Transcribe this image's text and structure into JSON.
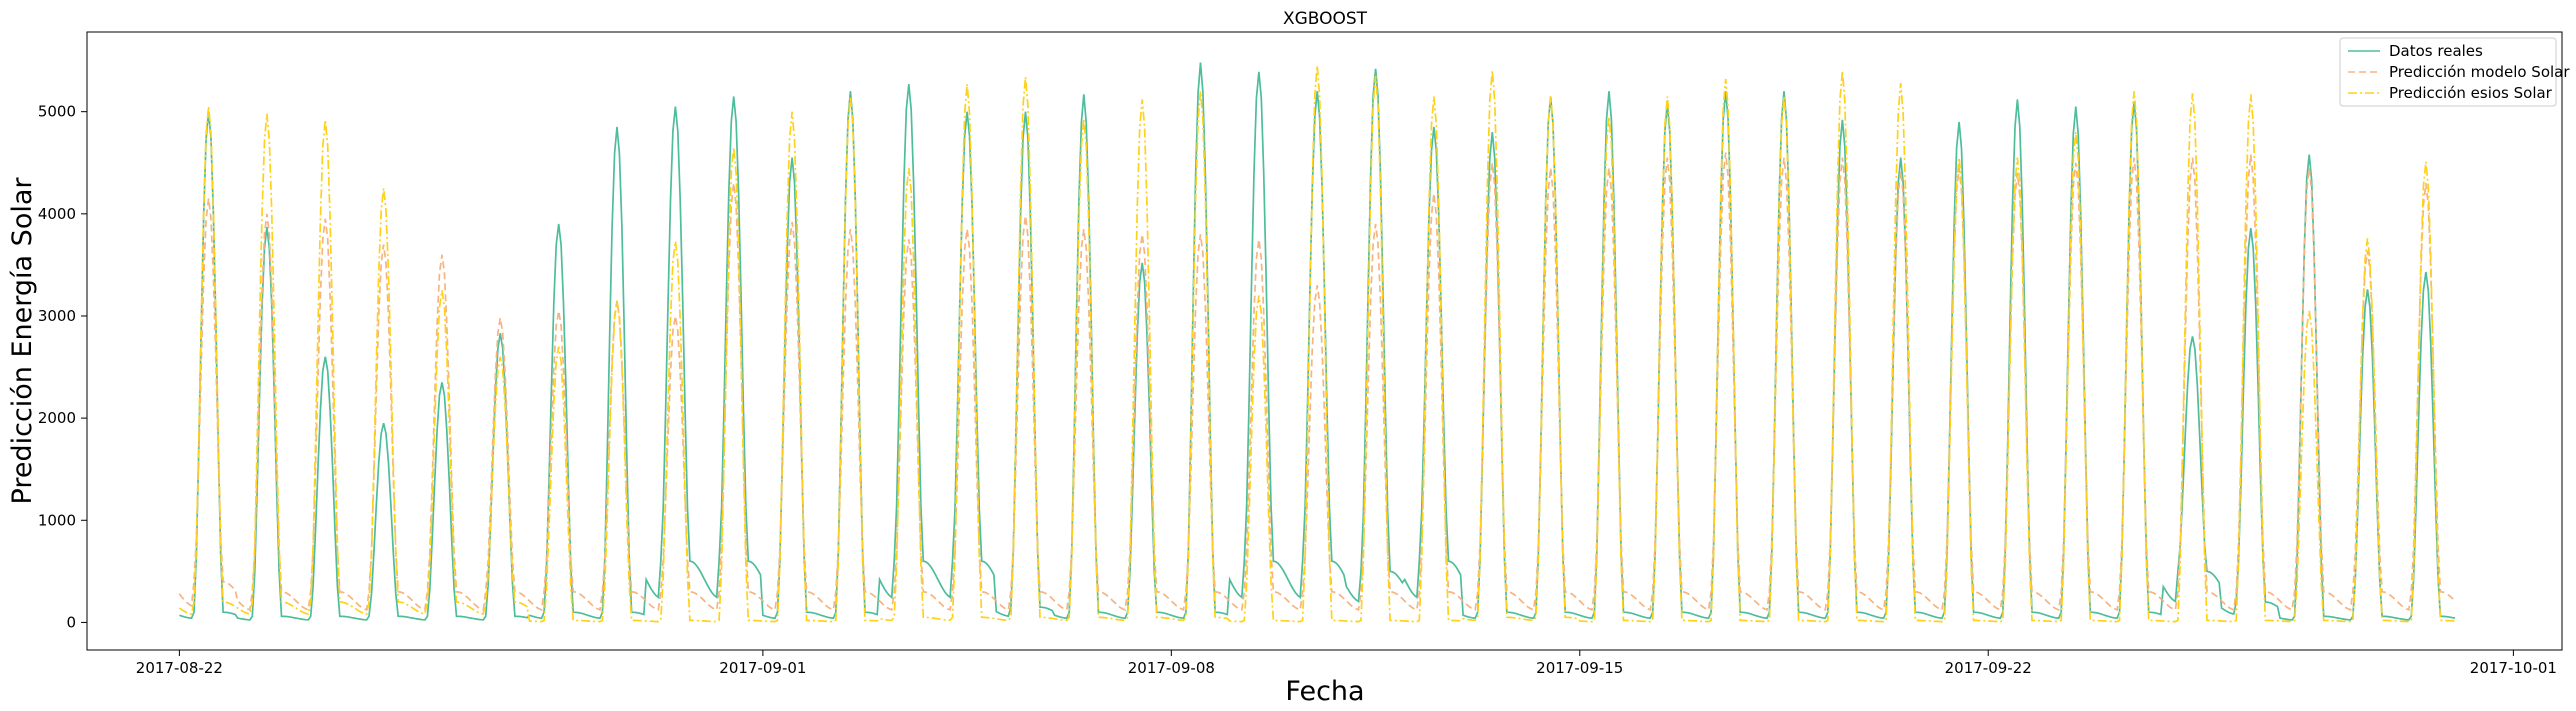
{
  "chart_data": {
    "type": "line",
    "title": "XGBOOST",
    "xlabel": "Fecha",
    "ylabel": "Predicción Energía Solar",
    "x_start": "2017-08-22",
    "x_end": "2017-09-29",
    "xlim": [
      "2017-08-20T10:00",
      "2017-10-01T20:00"
    ],
    "ylim": [
      -270,
      5780
    ],
    "x_ticks": [
      "2017-08-22",
      "2017-09-01",
      "2017-09-08",
      "2017-09-15",
      "2017-09-22",
      "2017-10-01"
    ],
    "y_ticks": [
      0,
      1000,
      2000,
      3000,
      4000,
      5000
    ],
    "grid": false,
    "legend_position": "top-right",
    "series": [
      {
        "name": "Datos reales",
        "color": "#4dbd9b",
        "line_style": "solid",
        "daily_peaks": [
          5000,
          3870,
          2600,
          1950,
          2350,
          2830,
          3900,
          4850,
          5050,
          5150,
          4550,
          5200,
          5270,
          5000,
          5000,
          5170,
          3520,
          5480,
          5390,
          5200,
          5420,
          4850,
          4800,
          5150,
          5200,
          5080,
          5200,
          5200,
          4920,
          4550,
          4900,
          5120,
          5050,
          5100,
          2800,
          3860,
          4580,
          3260,
          3430
        ],
        "daily_nights": [
          100,
          60,
          60,
          60,
          60,
          60,
          100,
          100,
          600,
          600,
          100,
          100,
          600,
          600,
          150,
          100,
          100,
          100,
          600,
          600,
          500,
          600,
          100,
          100,
          100,
          100,
          100,
          100,
          100,
          100,
          100,
          100,
          100,
          100,
          500,
          200,
          60,
          60,
          60
        ]
      },
      {
        "name": "Predicción modelo Solar",
        "color": "#f5b482",
        "line_style": "dashed",
        "daily_peaks": [
          4150,
          4000,
          3950,
          3700,
          3600,
          2980,
          3050,
          3150,
          3000,
          4300,
          3920,
          3850,
          3750,
          3850,
          3980,
          3850,
          3800,
          3800,
          3750,
          3300,
          3900,
          4200,
          4500,
          4450,
          4450,
          4550,
          4600,
          4550,
          4550,
          4420,
          4450,
          4400,
          4500,
          4550,
          4550,
          4580,
          4450,
          3640,
          4300
        ],
        "daily_nights": [
          400,
          300,
          300,
          300,
          300,
          300,
          300,
          300,
          300,
          300,
          300,
          300,
          300,
          300,
          300,
          300,
          300,
          300,
          300,
          300,
          300,
          300,
          300,
          300,
          300,
          300,
          300,
          300,
          300,
          300,
          300,
          300,
          300,
          300,
          300,
          300,
          300,
          300,
          300
        ]
      },
      {
        "name": "Predicción esios Solar",
        "color": "#ffd11a",
        "line_style": "dashdot",
        "daily_peaks": [
          5050,
          4980,
          4920,
          4250,
          3250,
          2600,
          2700,
          3150,
          3730,
          4650,
          5000,
          5150,
          4450,
          5270,
          5340,
          4930,
          5120,
          5200,
          3200,
          5450,
          5350,
          5150,
          5400,
          5150,
          4950,
          5150,
          5320,
          5150,
          5400,
          5280,
          4550,
          4550,
          4800,
          5200,
          5180,
          5170,
          3050,
          3760,
          4510
        ],
        "daily_nights": [
          200,
          200,
          200,
          200,
          200,
          200,
          20,
          20,
          20,
          20,
          20,
          20,
          50,
          50,
          50,
          50,
          50,
          50,
          20,
          20,
          20,
          20,
          50,
          50,
          20,
          20,
          20,
          20,
          20,
          20,
          20,
          20,
          20,
          20,
          20,
          20,
          20,
          20,
          20
        ]
      }
    ]
  }
}
